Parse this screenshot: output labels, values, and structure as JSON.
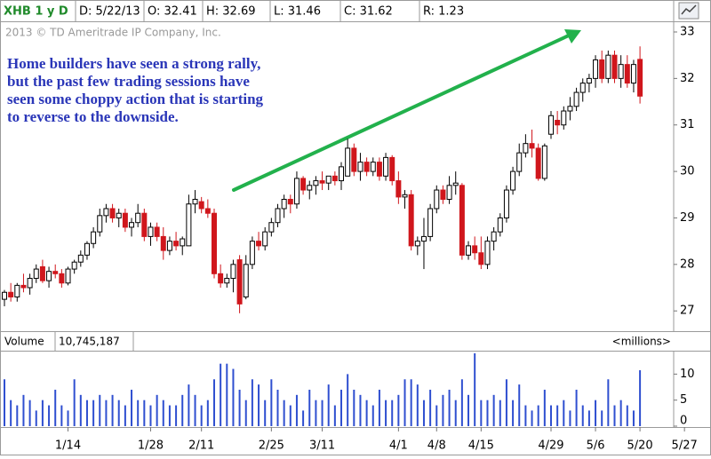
{
  "chart_data": {
    "type": "candlestick",
    "header": [
      "XHB 1 y D",
      "D: 5/22/13",
      "O: 32.41",
      "H: 32.69",
      "L: 31.46",
      "C: 31.62",
      "R: 1.23"
    ],
    "copyright": "2013 © TD Ameritrade IP Company, Inc.",
    "annotation": [
      "Home builders have seen a strong rally,",
      "but the past few trading sessions have",
      "seen some choppy action that is starting",
      "to reverse to the downside."
    ],
    "volume_header": [
      "Volume",
      "10,745,187"
    ],
    "volume_unit": "<millions>",
    "up_color": "#ffffff",
    "down_color": "#d0161c",
    "volume_color": "#2f4fd0",
    "trend_color": "#22b14c",
    "xlim": [
      -0.7,
      105.3
    ],
    "xticks": [
      {
        "value": 10,
        "label": "1/14"
      },
      {
        "value": 23,
        "label": "1/28"
      },
      {
        "value": 31,
        "label": "2/11"
      },
      {
        "value": 42,
        "label": "2/25"
      },
      {
        "value": 50,
        "label": "3/11"
      },
      {
        "value": 62,
        "label": "4/1"
      },
      {
        "value": 68,
        "label": "4/8"
      },
      {
        "value": 75,
        "label": "4/15"
      },
      {
        "value": 86,
        "label": "4/29"
      },
      {
        "value": 93,
        "label": "5/6"
      },
      {
        "value": 100,
        "label": "5/20"
      },
      {
        "value": 107,
        "label": "5/27"
      }
    ],
    "ylim": [
      26.66,
      33.21
    ],
    "yticks": [
      27,
      28,
      29,
      30,
      31,
      32,
      33
    ],
    "y2lim": [
      0,
      14.5
    ],
    "y2ticks": [
      0,
      5,
      10
    ],
    "open": [
      27.25,
      27.4,
      27.3,
      27.55,
      27.5,
      27.7,
      27.95,
      27.65,
      27.85,
      27.8,
      27.6,
      27.9,
      28.05,
      28.2,
      28.45,
      28.7,
      29.05,
      29.2,
      29.0,
      29.1,
      28.8,
      28.9,
      29.1,
      28.6,
      28.8,
      28.6,
      28.3,
      28.5,
      28.4,
      28.4,
      29.3,
      29.35,
      29.2,
      29.1,
      27.8,
      27.6,
      27.7,
      28.1,
      27.3,
      28.0,
      28.5,
      28.4,
      28.7,
      28.9,
      29.2,
      29.4,
      29.3,
      29.85,
      29.6,
      29.7,
      29.8,
      29.75,
      29.9,
      29.8,
      29.9,
      30.5,
      30.0,
      30.2,
      30.0,
      30.2,
      29.9,
      30.3,
      29.8,
      29.45,
      29.5,
      28.4,
      28.5,
      28.6,
      29.2,
      29.6,
      29.4,
      29.7,
      29.7,
      28.2,
      28.4,
      28.25,
      28.0,
      28.5,
      28.7,
      29.0,
      29.6,
      30.0,
      30.4,
      30.6,
      30.5,
      29.85,
      30.8,
      31.1,
      31.0,
      31.3,
      31.4,
      31.7,
      31.9,
      32.0,
      32.4,
      32.0,
      32.5,
      32.0,
      32.3,
      31.9,
      32.41
    ],
    "high": [
      27.45,
      27.6,
      27.6,
      27.8,
      27.8,
      28.0,
      28.1,
      27.95,
      28.0,
      27.9,
      27.95,
      28.1,
      28.3,
      28.5,
      28.8,
      29.2,
      29.3,
      29.3,
      29.2,
      29.2,
      29.0,
      29.3,
      29.2,
      28.9,
      28.9,
      28.8,
      28.6,
      28.7,
      28.6,
      29.5,
      29.6,
      29.45,
      29.4,
      29.2,
      28.0,
      27.8,
      28.1,
      28.2,
      28.2,
      28.6,
      28.7,
      28.8,
      29.0,
      29.3,
      29.5,
      29.5,
      30.0,
      29.9,
      29.8,
      29.9,
      30.0,
      29.9,
      30.0,
      30.2,
      30.7,
      30.6,
      30.4,
      30.3,
      30.3,
      30.3,
      30.4,
      30.35,
      30.0,
      29.6,
      29.6,
      28.6,
      29.0,
      29.3,
      29.7,
      29.7,
      29.9,
      30.0,
      29.75,
      28.5,
      28.6,
      28.6,
      28.6,
      28.8,
      29.1,
      29.7,
      30.1,
      30.6,
      30.8,
      30.9,
      30.6,
      30.6,
      31.3,
      31.3,
      31.4,
      31.6,
      31.8,
      32.0,
      32.1,
      32.5,
      32.6,
      32.6,
      32.6,
      32.5,
      32.5,
      32.4,
      32.69
    ],
    "low": [
      27.1,
      27.2,
      27.2,
      27.4,
      27.35,
      27.6,
      27.6,
      27.5,
      27.7,
      27.5,
      27.55,
      27.8,
      27.95,
      28.1,
      28.35,
      28.6,
      28.9,
      28.9,
      28.8,
      28.7,
      28.6,
      28.8,
      28.5,
      28.4,
      28.5,
      28.1,
      28.2,
      28.3,
      28.2,
      28.4,
      29.1,
      29.1,
      29.0,
      27.7,
      27.5,
      27.5,
      27.4,
      26.95,
      27.25,
      27.9,
      28.3,
      28.3,
      28.6,
      28.8,
      29.0,
      29.1,
      29.2,
      29.5,
      29.4,
      29.5,
      29.6,
      29.6,
      29.7,
      29.6,
      29.9,
      29.9,
      29.8,
      29.9,
      29.9,
      29.8,
      29.8,
      29.7,
      29.3,
      29.2,
      28.3,
      28.2,
      27.9,
      28.5,
      29.1,
      29.3,
      29.3,
      29.5,
      28.1,
      28.1,
      28.1,
      27.9,
      27.9,
      28.3,
      28.6,
      28.9,
      29.5,
      29.9,
      30.3,
      30.3,
      29.8,
      29.8,
      30.7,
      30.8,
      30.9,
      31.1,
      31.3,
      31.5,
      31.7,
      31.8,
      31.9,
      31.9,
      31.9,
      31.8,
      31.8,
      31.7,
      31.46
    ],
    "close": [
      27.4,
      27.3,
      27.55,
      27.5,
      27.7,
      27.9,
      27.65,
      27.85,
      27.8,
      27.6,
      27.9,
      28.05,
      28.2,
      28.45,
      28.7,
      29.05,
      29.2,
      29.0,
      29.1,
      28.8,
      28.9,
      29.1,
      28.6,
      28.8,
      28.6,
      28.3,
      28.5,
      28.4,
      28.55,
      29.3,
      29.4,
      29.2,
      29.1,
      27.8,
      27.6,
      27.7,
      28.0,
      27.15,
      28.0,
      28.5,
      28.4,
      28.7,
      28.9,
      29.2,
      29.4,
      29.3,
      29.85,
      29.6,
      29.7,
      29.8,
      29.75,
      29.9,
      29.8,
      30.1,
      30.5,
      30.0,
      30.2,
      30.0,
      30.2,
      29.9,
      30.3,
      29.8,
      29.45,
      29.5,
      28.4,
      28.5,
      28.6,
      29.2,
      29.6,
      29.4,
      29.7,
      29.75,
      28.2,
      28.4,
      28.25,
      28.0,
      28.5,
      28.7,
      29.0,
      29.6,
      30.0,
      30.4,
      30.6,
      30.5,
      29.85,
      30.55,
      31.2,
      31.0,
      31.3,
      31.4,
      31.7,
      31.9,
      32.0,
      32.4,
      32.0,
      32.5,
      32.0,
      32.3,
      31.9,
      32.3,
      31.62
    ],
    "volume": [
      9,
      5,
      4,
      6,
      5,
      3,
      5,
      4,
      7,
      4,
      3,
      9,
      6,
      5,
      5,
      6,
      5,
      6,
      5,
      4,
      7,
      5,
      5,
      4,
      6,
      5,
      4,
      4,
      6,
      8,
      6,
      4,
      5,
      9,
      12,
      12,
      11,
      7,
      5,
      9,
      8,
      5,
      9,
      7,
      5,
      4,
      6,
      3,
      7,
      5,
      5,
      8,
      4,
      7,
      10,
      7,
      6,
      5,
      4,
      7,
      5,
      5,
      6,
      9,
      9,
      8,
      5,
      7,
      4,
      6,
      7,
      5,
      9,
      6,
      14,
      5,
      5,
      6,
      5,
      9,
      5,
      8,
      4,
      3,
      4,
      7,
      4,
      4,
      5,
      3,
      7,
      4,
      3,
      5,
      3,
      9,
      4,
      5,
      4,
      3,
      10.745187
    ]
  }
}
